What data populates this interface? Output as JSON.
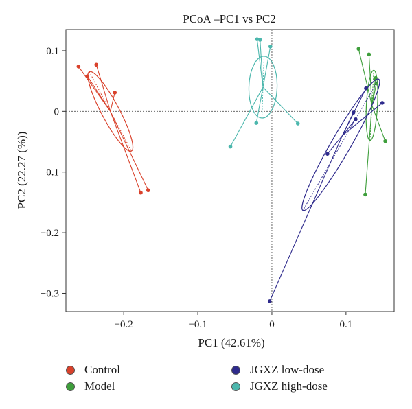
{
  "chart_data": {
    "type": "scatter",
    "title": "PCoA –PC1 vs PC2",
    "xlabel": "PC1 (42.61%)",
    "ylabel": "PC2 (22.27 (%))",
    "xlim": [
      -0.278,
      0.165
    ],
    "ylim": [
      -0.33,
      0.135
    ],
    "x_ticks": [
      -0.2,
      -0.1,
      0,
      0.1
    ],
    "x_tick_labels": [
      "−0.2",
      "−0.1",
      "0",
      "0.1"
    ],
    "y_ticks": [
      0.1,
      0,
      -0.1,
      -0.2,
      -0.3
    ],
    "y_tick_labels": [
      "0.1",
      "0",
      "−0.1",
      "−0.2",
      "−0.3"
    ],
    "reference_lines": {
      "x": 0,
      "y": 0,
      "style": "dotted"
    },
    "grid": false,
    "legend_position": "bottom",
    "series": [
      {
        "name": "Control",
        "color": "#d9412b",
        "centroid": [
          -0.218,
          0.0
        ],
        "ellipse": {
          "center": [
            -0.218,
            0.0
          ],
          "rx": 0.012,
          "ry": 0.074,
          "angle_deg": -28
        },
        "points": [
          [
            -0.261,
            0.074
          ],
          [
            -0.237,
            0.077
          ],
          [
            -0.249,
            0.058
          ],
          [
            -0.212,
            0.031
          ],
          [
            -0.167,
            -0.13
          ],
          [
            -0.177,
            -0.134
          ]
        ]
      },
      {
        "name": "Model",
        "color": "#3e9e3b",
        "centroid": [
          0.135,
          0.01
        ],
        "ellipse": {
          "center": [
            0.135,
            0.01
          ],
          "rx": 0.0075,
          "ry": 0.058,
          "angle_deg": 3
        },
        "points": [
          [
            0.117,
            0.103
          ],
          [
            0.131,
            0.094
          ],
          [
            0.14,
            0.055
          ],
          [
            0.141,
            0.046
          ],
          [
            0.153,
            -0.049
          ],
          [
            0.126,
            -0.137
          ]
        ]
      },
      {
        "name": "JGXZ low-dose",
        "color": "#2e2a8c",
        "centroid": [
          0.095,
          -0.04
        ],
        "ellipse": {
          "center": [
            0.093,
            -0.055
          ],
          "rx": 0.013,
          "ry": 0.125,
          "angle_deg": 30
        },
        "points": [
          [
            0.127,
            0.038
          ],
          [
            0.149,
            0.014
          ],
          [
            0.11,
            -0.002
          ],
          [
            0.113,
            -0.013
          ],
          [
            0.075,
            -0.07
          ],
          [
            -0.003,
            -0.313
          ]
        ]
      },
      {
        "name": "JGXZ high-dose",
        "color": "#4cb7ad",
        "centroid": [
          -0.012,
          0.04
        ],
        "ellipse": {
          "center": [
            -0.012,
            0.04
          ],
          "rx": 0.019,
          "ry": 0.051,
          "angle_deg": 2
        },
        "points": [
          [
            -0.02,
            0.119
          ],
          [
            -0.016,
            0.118
          ],
          [
            -0.002,
            0.107
          ],
          [
            -0.021,
            -0.019
          ],
          [
            0.035,
            -0.02
          ],
          [
            -0.056,
            -0.058
          ]
        ]
      }
    ]
  }
}
